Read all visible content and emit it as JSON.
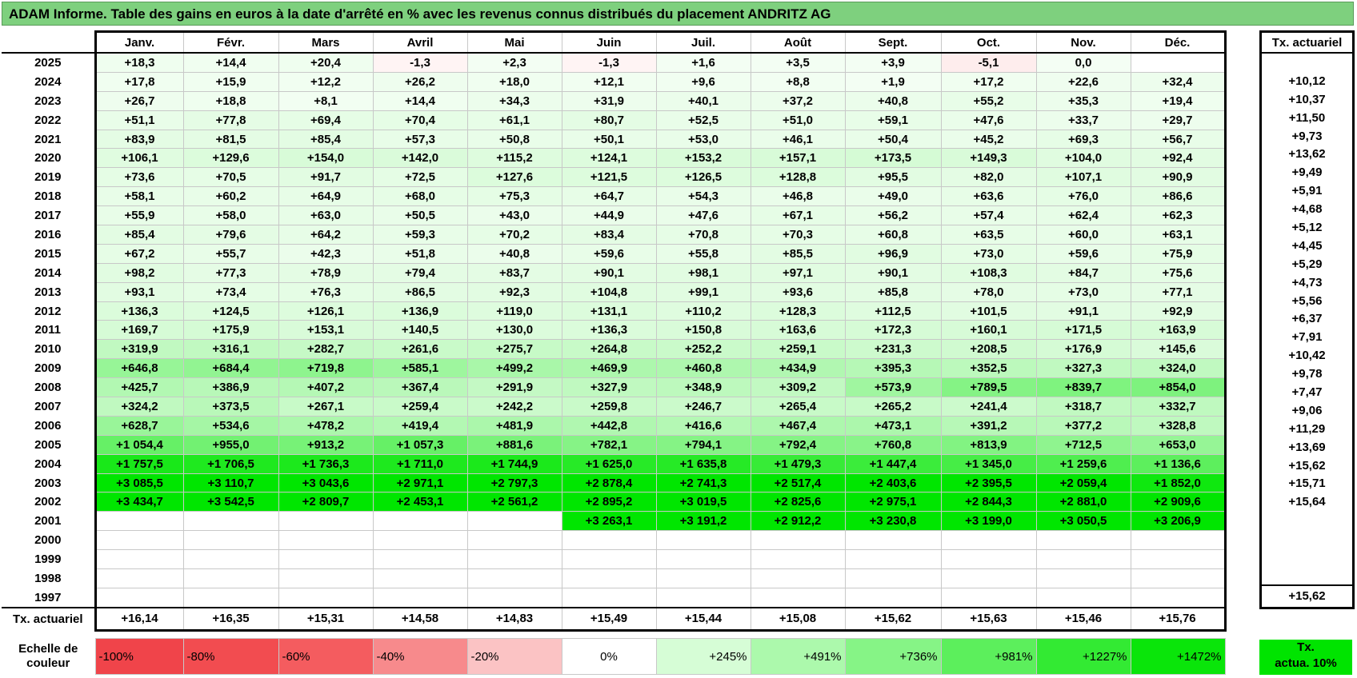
{
  "title": "ADAM Informe. Table des gains en euros à la date d'arrêté en % avec les revenus connus distribués du placement ANDRITZ AG",
  "months": [
    "Janv.",
    "Févr.",
    "Mars",
    "Avril",
    "Mai",
    "Juin",
    "Juil.",
    "Août",
    "Sept.",
    "Oct.",
    "Nov.",
    "Déc."
  ],
  "side_header": "Tx. actuariel",
  "rows": [
    {
      "year": "2025",
      "values": [
        "+18,3",
        "+14,4",
        "+20,4",
        "-1,3",
        "+2,3",
        "-1,3",
        "+1,6",
        "+3,5",
        "+3,9",
        "-5,1",
        "0,0",
        ""
      ],
      "rate": ""
    },
    {
      "year": "2024",
      "values": [
        "+17,8",
        "+15,9",
        "+12,2",
        "+26,2",
        "+18,0",
        "+12,1",
        "+9,6",
        "+8,8",
        "+1,9",
        "+17,2",
        "+22,6",
        "+32,4"
      ],
      "rate": "+10,12"
    },
    {
      "year": "2023",
      "values": [
        "+26,7",
        "+18,8",
        "+8,1",
        "+14,4",
        "+34,3",
        "+31,9",
        "+40,1",
        "+37,2",
        "+40,8",
        "+55,2",
        "+35,3",
        "+19,4"
      ],
      "rate": "+10,37"
    },
    {
      "year": "2022",
      "values": [
        "+51,1",
        "+77,8",
        "+69,4",
        "+70,4",
        "+61,1",
        "+80,7",
        "+52,5",
        "+51,0",
        "+59,1",
        "+47,6",
        "+33,7",
        "+29,7"
      ],
      "rate": "+11,50"
    },
    {
      "year": "2021",
      "values": [
        "+83,9",
        "+81,5",
        "+85,4",
        "+57,3",
        "+50,8",
        "+50,1",
        "+53,0",
        "+46,1",
        "+50,4",
        "+45,2",
        "+69,3",
        "+56,7"
      ],
      "rate": "+9,73"
    },
    {
      "year": "2020",
      "values": [
        "+106,1",
        "+129,6",
        "+154,0",
        "+142,0",
        "+115,2",
        "+124,1",
        "+153,2",
        "+157,1",
        "+173,5",
        "+149,3",
        "+104,0",
        "+92,4"
      ],
      "rate": "+13,62"
    },
    {
      "year": "2019",
      "values": [
        "+73,6",
        "+70,5",
        "+91,7",
        "+72,5",
        "+127,6",
        "+121,5",
        "+126,5",
        "+128,8",
        "+95,5",
        "+82,0",
        "+107,1",
        "+90,9"
      ],
      "rate": "+9,49"
    },
    {
      "year": "2018",
      "values": [
        "+58,1",
        "+60,2",
        "+64,9",
        "+68,0",
        "+75,3",
        "+64,7",
        "+54,3",
        "+46,8",
        "+49,0",
        "+63,6",
        "+76,0",
        "+86,6"
      ],
      "rate": "+5,91"
    },
    {
      "year": "2017",
      "values": [
        "+55,9",
        "+58,0",
        "+63,0",
        "+50,5",
        "+43,0",
        "+44,9",
        "+47,6",
        "+67,1",
        "+56,2",
        "+57,4",
        "+62,4",
        "+62,3"
      ],
      "rate": "+4,68"
    },
    {
      "year": "2016",
      "values": [
        "+85,4",
        "+79,6",
        "+64,2",
        "+59,3",
        "+70,2",
        "+83,4",
        "+70,8",
        "+70,3",
        "+60,8",
        "+63,5",
        "+60,0",
        "+63,1"
      ],
      "rate": "+5,12"
    },
    {
      "year": "2015",
      "values": [
        "+67,2",
        "+55,7",
        "+42,3",
        "+51,8",
        "+40,8",
        "+59,6",
        "+55,8",
        "+85,5",
        "+96,9",
        "+73,0",
        "+59,6",
        "+75,9"
      ],
      "rate": "+4,45"
    },
    {
      "year": "2014",
      "values": [
        "+98,2",
        "+77,3",
        "+78,9",
        "+79,4",
        "+83,7",
        "+90,1",
        "+98,1",
        "+97,1",
        "+90,1",
        "+108,3",
        "+84,7",
        "+75,6"
      ],
      "rate": "+5,29"
    },
    {
      "year": "2013",
      "values": [
        "+93,1",
        "+73,4",
        "+76,3",
        "+86,5",
        "+92,3",
        "+104,8",
        "+99,1",
        "+93,6",
        "+85,8",
        "+78,0",
        "+73,0",
        "+77,1"
      ],
      "rate": "+4,73"
    },
    {
      "year": "2012",
      "values": [
        "+136,3",
        "+124,5",
        "+126,1",
        "+136,9",
        "+119,0",
        "+131,1",
        "+110,2",
        "+128,3",
        "+112,5",
        "+101,5",
        "+91,1",
        "+92,9"
      ],
      "rate": "+5,56"
    },
    {
      "year": "2011",
      "values": [
        "+169,7",
        "+175,9",
        "+153,1",
        "+140,5",
        "+130,0",
        "+136,3",
        "+150,8",
        "+163,6",
        "+172,3",
        "+160,1",
        "+171,5",
        "+163,9"
      ],
      "rate": "+6,37"
    },
    {
      "year": "2010",
      "values": [
        "+319,9",
        "+316,1",
        "+282,7",
        "+261,6",
        "+275,7",
        "+264,8",
        "+252,2",
        "+259,1",
        "+231,3",
        "+208,5",
        "+176,9",
        "+145,6"
      ],
      "rate": "+7,91"
    },
    {
      "year": "2009",
      "values": [
        "+646,8",
        "+684,4",
        "+719,8",
        "+585,1",
        "+499,2",
        "+469,9",
        "+460,8",
        "+434,9",
        "+395,3",
        "+352,5",
        "+327,3",
        "+324,0"
      ],
      "rate": "+10,42"
    },
    {
      "year": "2008",
      "values": [
        "+425,7",
        "+386,9",
        "+407,2",
        "+367,4",
        "+291,9",
        "+327,9",
        "+348,9",
        "+309,2",
        "+573,9",
        "+789,5",
        "+839,7",
        "+854,0"
      ],
      "rate": "+9,78"
    },
    {
      "year": "2007",
      "values": [
        "+324,2",
        "+373,5",
        "+267,1",
        "+259,4",
        "+242,2",
        "+259,8",
        "+246,7",
        "+265,4",
        "+265,2",
        "+241,4",
        "+318,7",
        "+332,7"
      ],
      "rate": "+7,47"
    },
    {
      "year": "2006",
      "values": [
        "+628,7",
        "+534,6",
        "+478,2",
        "+419,4",
        "+481,9",
        "+442,8",
        "+416,6",
        "+467,4",
        "+473,1",
        "+391,2",
        "+377,2",
        "+328,8"
      ],
      "rate": "+9,06"
    },
    {
      "year": "2005",
      "values": [
        "+1 054,4",
        "+955,0",
        "+913,2",
        "+1 057,3",
        "+881,6",
        "+782,1",
        "+794,1",
        "+792,4",
        "+760,8",
        "+813,9",
        "+712,5",
        "+653,0"
      ],
      "rate": "+11,29"
    },
    {
      "year": "2004",
      "values": [
        "+1 757,5",
        "+1 706,5",
        "+1 736,3",
        "+1 711,0",
        "+1 744,9",
        "+1 625,0",
        "+1 635,8",
        "+1 479,3",
        "+1 447,4",
        "+1 345,0",
        "+1 259,6",
        "+1 136,6"
      ],
      "rate": "+13,69"
    },
    {
      "year": "2003",
      "values": [
        "+3 085,5",
        "+3 110,7",
        "+3 043,6",
        "+2 971,1",
        "+2 797,3",
        "+2 878,4",
        "+2 741,3",
        "+2 517,4",
        "+2 403,6",
        "+2 395,5",
        "+2 059,4",
        "+1 852,0"
      ],
      "rate": "+15,62"
    },
    {
      "year": "2002",
      "values": [
        "+3 434,7",
        "+3 542,5",
        "+2 809,7",
        "+2 453,1",
        "+2 561,2",
        "+2 895,2",
        "+3 019,5",
        "+2 825,6",
        "+2 975,1",
        "+2 844,3",
        "+2 881,0",
        "+2 909,6"
      ],
      "rate": "+15,71"
    },
    {
      "year": "2001",
      "values": [
        "",
        "",
        "",
        "",
        "",
        "+3 263,1",
        "+3 191,2",
        "+2 912,2",
        "+3 230,8",
        "+3 199,0",
        "+3 050,5",
        "+3 206,9"
      ],
      "rate": "+15,64"
    },
    {
      "year": "2000",
      "values": [
        "",
        "",
        "",
        "",
        "",
        "",
        "",
        "",
        "",
        "",
        "",
        ""
      ],
      "rate": ""
    },
    {
      "year": "1999",
      "values": [
        "",
        "",
        "",
        "",
        "",
        "",
        "",
        "",
        "",
        "",
        "",
        ""
      ],
      "rate": ""
    },
    {
      "year": "1998",
      "values": [
        "",
        "",
        "",
        "",
        "",
        "",
        "",
        "",
        "",
        "",
        "",
        ""
      ],
      "rate": ""
    },
    {
      "year": "1997",
      "values": [
        "",
        "",
        "",
        "",
        "",
        "",
        "",
        "",
        "",
        "",
        "",
        ""
      ],
      "rate": ""
    }
  ],
  "total_label": "Tx. actuariel",
  "totals": [
    "+16,14",
    "+16,35",
    "+15,31",
    "+14,58",
    "+14,83",
    "+15,49",
    "+15,44",
    "+15,08",
    "+15,62",
    "+15,63",
    "+15,46",
    "+15,76"
  ],
  "total_rate": "+15,62",
  "scale_label_1": "Echelle de",
  "scale_label_2": "couleur",
  "scale": [
    {
      "label": "-100%",
      "color": "#f0444a"
    },
    {
      "label": "-80%",
      "color": "#f24c50"
    },
    {
      "label": "-60%",
      "color": "#f45c5f"
    },
    {
      "label": "-40%",
      "color": "#f78a8c"
    },
    {
      "label": "-20%",
      "color": "#fbc3c4"
    },
    {
      "label": "0%",
      "color": "#ffffff"
    },
    {
      "label": "+245%",
      "color": "#d6fdd6"
    },
    {
      "label": "+491%",
      "color": "#acf9ac"
    },
    {
      "label": "+736%",
      "color": "#86f486"
    },
    {
      "label": "+981%",
      "color": "#5cef5c"
    },
    {
      "label": "+1227%",
      "color": "#33ea33"
    },
    {
      "label": "+1472%",
      "color": "#0ae50a"
    }
  ],
  "side_scale_1": "Tx.",
  "side_scale_2": "actua. 10%",
  "side_scale_color": "#00e400"
}
